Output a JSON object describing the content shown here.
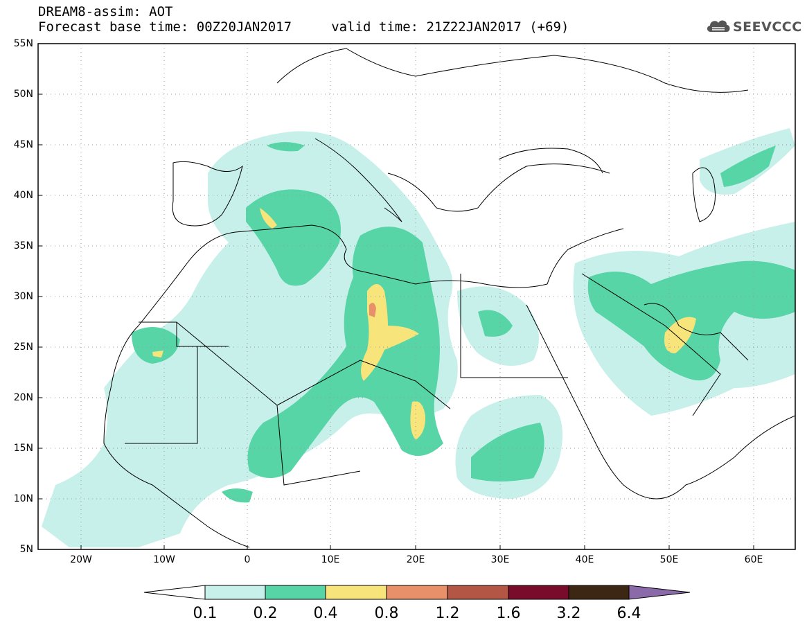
{
  "header": {
    "line1": "DREAM8-assim: AOT",
    "line2": "Forecast base time: 00Z20JAN2017     valid time: 21Z22JAN2017 (+69)"
  },
  "logo": {
    "text": "SEEVCCC",
    "icon": "cloud-icon"
  },
  "map": {
    "lat_labels": [
      "55N",
      "50N",
      "45N",
      "40N",
      "35N",
      "30N",
      "25N",
      "20N",
      "15N",
      "10N",
      "5N"
    ],
    "lon_labels": [
      "20W",
      "10W",
      "0",
      "10E",
      "20E",
      "30E",
      "40E",
      "50E",
      "60E"
    ],
    "lon_range": [
      -25,
      65
    ],
    "lat_range": [
      5,
      55
    ],
    "grid": true
  },
  "colorbar": {
    "labels": [
      "0.1",
      "0.2",
      "0.4",
      "0.8",
      "1.2",
      "1.6",
      "3.2",
      "6.4"
    ],
    "colors": [
      "#ffffff",
      "#c7f0ea",
      "#57d5a6",
      "#f7e47a",
      "#e8906a",
      "#b45645",
      "#7a0c2b",
      "#3b2713",
      "#8a6aa8"
    ]
  },
  "aot_colors": {
    "light": "#c7f0ea",
    "medium": "#57d5a6",
    "high": "#f7e47a",
    "very_high": "#e8906a",
    "extreme": "#b45645"
  }
}
